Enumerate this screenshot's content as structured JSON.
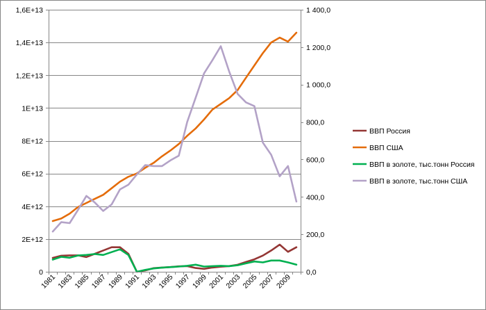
{
  "chart_data": {
    "type": "line",
    "title": "",
    "xlabel": "",
    "ylabel": "",
    "categories": [
      "1981",
      "1982",
      "1983",
      "1984",
      "1985",
      "1986",
      "1987",
      "1988",
      "1989",
      "1990",
      "1991",
      "1992",
      "1993",
      "1994",
      "1995",
      "1996",
      "1997",
      "1998",
      "1999",
      "2000",
      "2001",
      "2002",
      "2003",
      "2004",
      "2005",
      "2006",
      "2007",
      "2008",
      "2009",
      "2010"
    ],
    "x_tick_labels": [
      "1981",
      "1983",
      "1985",
      "1987",
      "1989",
      "1991",
      "1993",
      "1995",
      "1997",
      "1999",
      "2001",
      "2003",
      "2005",
      "2007",
      "2009"
    ],
    "y_left": {
      "ylim": [
        0,
        16000000000000.0
      ],
      "tick_values": [
        0,
        2000000000000.0,
        4000000000000.0,
        6000000000000.0,
        8000000000000.0,
        10000000000000.0,
        12000000000000.0,
        14000000000000.0,
        16000000000000.0
      ],
      "tick_labels": [
        "0",
        "2E+12",
        "4E+12",
        "6E+12",
        "8E+12",
        "1E+13",
        "1,2E+13",
        "1,4E+13",
        "1,6E+13"
      ]
    },
    "y_right": {
      "ylim": [
        0,
        1400
      ],
      "tick_values": [
        0,
        200,
        400,
        600,
        800,
        1000,
        1200,
        1400
      ],
      "tick_labels": [
        "0,0",
        "200,0",
        "400,0",
        "600,0",
        "800,0",
        "1 000,0",
        "1 200,0",
        "1 400,0"
      ]
    },
    "grid": true,
    "legend_position": "right",
    "series": [
      {
        "name": "ВВП Россия",
        "axis": "left",
        "color": "#943634",
        "values": [
          850000000000.0,
          980000000000.0,
          1000000000000.0,
          1000000000000.0,
          900000000000.0,
          1100000000000.0,
          1300000000000.0,
          1500000000000.0,
          1500000000000.0,
          1100000000000.0,
          0,
          80000000000.0,
          220000000000.0,
          260000000000.0,
          290000000000.0,
          330000000000.0,
          350000000000.0,
          230000000000.0,
          180000000000.0,
          260000000000.0,
          310000000000.0,
          350000000000.0,
          430000000000.0,
          600000000000.0,
          760000000000.0,
          990000000000.0,
          1300000000000.0,
          1660000000000.0,
          1220000000000.0,
          1500000000000.0
        ]
      },
      {
        "name": "ВВП США",
        "axis": "left",
        "color": "#E46C0A",
        "values": [
          3100000000000.0,
          3250000000000.0,
          3550000000000.0,
          3950000000000.0,
          4200000000000.0,
          4450000000000.0,
          4700000000000.0,
          5100000000000.0,
          5500000000000.0,
          5800000000000.0,
          6000000000000.0,
          6350000000000.0,
          6650000000000.0,
          7050000000000.0,
          7400000000000.0,
          7800000000000.0,
          8300000000000.0,
          8750000000000.0,
          9300000000000.0,
          9900000000000.0,
          10250000000000.0,
          10600000000000.0,
          11100000000000.0,
          11850000000000.0,
          12600000000000.0,
          13350000000000.0,
          14000000000000.0,
          14300000000000.0,
          14050000000000.0,
          14600000000000.0
        ]
      },
      {
        "name": "ВВП в золоте, тыс.тонн Россия",
        "axis": "right",
        "color": "#00B050",
        "values": [
          65,
          80,
          75,
          87,
          90,
          95,
          90,
          105,
          120,
          90,
          0,
          10,
          18,
          22,
          25,
          28,
          32,
          38,
          28,
          30,
          32,
          30,
          35,
          45,
          55,
          50,
          60,
          60,
          50,
          38
        ]
      },
      {
        "name": "ВВП в золоте, тыс.тонн США",
        "axis": "right",
        "color": "#B3A2C7",
        "values": [
          215,
          265,
          260,
          330,
          405,
          370,
          325,
          360,
          440,
          465,
          520,
          570,
          565,
          565,
          595,
          620,
          800,
          930,
          1060,
          1130,
          1205,
          1070,
          950,
          905,
          885,
          690,
          625,
          510,
          565,
          375
        ]
      }
    ]
  }
}
